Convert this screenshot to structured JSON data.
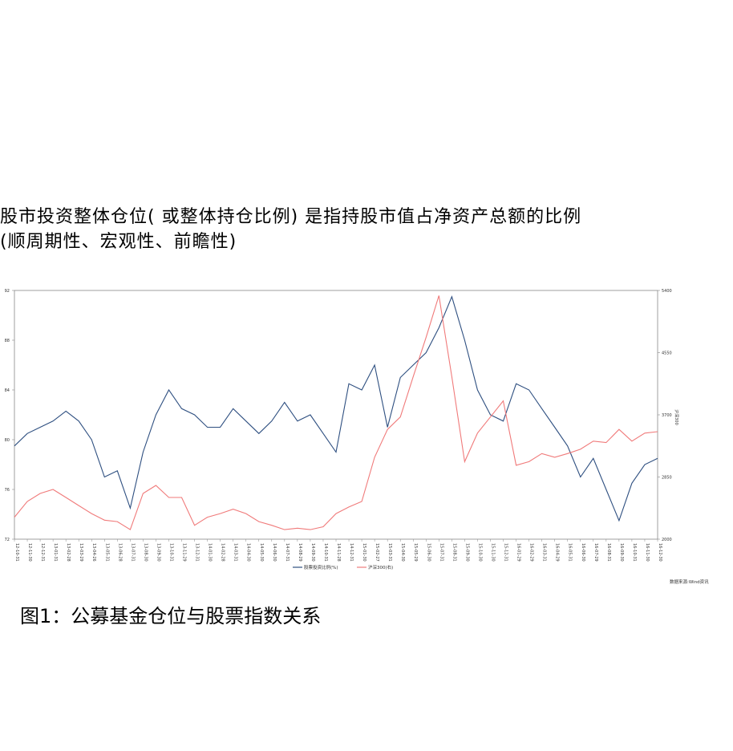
{
  "header": {
    "line1": "股市投资整体仓位( 或整体持仓比例) 是指持股市值占净资产总额的比例",
    "line2": "(顺周期性、宏观性、前瞻性)"
  },
  "chart_data": {
    "type": "line",
    "y2label": "沪深300",
    "source": "数据来源:Wind资讯",
    "categories": [
      "12-10-31",
      "12-11-30",
      "12-12-31",
      "13-01-31",
      "13-02-28",
      "13-03-29",
      "13-04-26",
      "13-05-31",
      "13-06-28",
      "13-07-31",
      "13-08-30",
      "13-09-30",
      "13-10-31",
      "13-11-29",
      "13-12-31",
      "14-01-30",
      "14-02-28",
      "14-03-31",
      "14-04-30",
      "14-05-30",
      "14-06-30",
      "14-07-31",
      "14-08-29",
      "14-09-30",
      "14-10-31",
      "14-11-28",
      "14-12-31",
      "15-01-30",
      "15-02-27",
      "15-03-31",
      "15-04-30",
      "15-05-29",
      "15-06-30",
      "15-07-31",
      "15-08-31",
      "15-09-30",
      "15-10-30",
      "15-11-30",
      "15-12-31",
      "16-01-29",
      "16-02-29",
      "16-03-31",
      "16-04-29",
      "16-05-31",
      "16-06-30",
      "16-07-29",
      "16-08-31",
      "16-09-30",
      "16-10-31",
      "16-11-30",
      "16-12-30"
    ],
    "series": [
      {
        "name": "股票投资比例(%)",
        "color": "#2e4f80",
        "values": [
          79.5,
          80.5,
          81,
          81.5,
          82.3,
          81.5,
          80,
          77,
          77.5,
          74.5,
          79,
          82,
          84,
          82.5,
          82,
          81,
          81,
          82.5,
          81.5,
          80.5,
          81.5,
          83,
          81.5,
          82,
          80.5,
          79,
          84.5,
          84,
          86,
          81,
          85,
          86,
          87,
          89,
          91.5,
          88,
          84,
          82,
          81.5,
          84.5,
          84,
          82.5,
          81,
          79.5,
          77,
          78.5,
          76,
          73.5,
          76.5,
          78,
          78.5
        ]
      },
      {
        "name": "沪深300(右)",
        "color": "#f07a7a",
        "axis": "y2",
        "values": [
          2300,
          2515,
          2625,
          2680,
          2570,
          2460,
          2350,
          2260,
          2240,
          2130,
          2625,
          2735,
          2570,
          2570,
          2190,
          2300,
          2350,
          2410,
          2350,
          2240,
          2190,
          2130,
          2150,
          2130,
          2170,
          2350,
          2440,
          2515,
          3120,
          3500,
          3670,
          4220,
          4760,
          5330,
          4220,
          3060,
          3450,
          3670,
          3890,
          3010,
          3060,
          3170,
          3120,
          3170,
          3230,
          3340,
          3320,
          3500,
          3340,
          3450,
          3470
        ]
      }
    ],
    "ylim": [
      72,
      92
    ],
    "yticks": [
      72,
      76,
      80,
      84,
      88,
      92
    ],
    "y2lim": [
      2000,
      5400
    ],
    "y2ticks": [
      2000,
      2850,
      3700,
      4550,
      5400
    ],
    "legend": "bottom"
  },
  "caption": "图1：公募基金仓位与股票指数关系"
}
